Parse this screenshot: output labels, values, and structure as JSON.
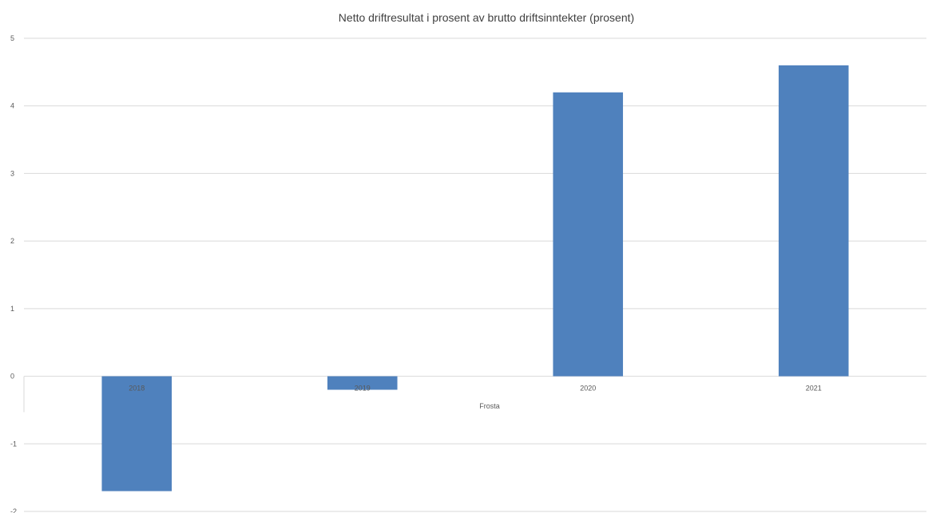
{
  "chart_data": {
    "type": "bar",
    "title": "Netto driftresultat i prosent av brutto driftsinntekter (prosent)",
    "xlabel": "Frosta",
    "ylabel": "",
    "categories": [
      "2018",
      "2019",
      "2020",
      "2021"
    ],
    "series": [
      {
        "values": [
          -1.7,
          -0.2,
          4.2,
          4.6
        ],
        "color": "#4f81bd"
      }
    ],
    "ylim": [
      -2,
      5
    ],
    "yticks": [
      5,
      4,
      3,
      2,
      1,
      0,
      -1,
      -2
    ],
    "grid": true,
    "legend": "none"
  }
}
